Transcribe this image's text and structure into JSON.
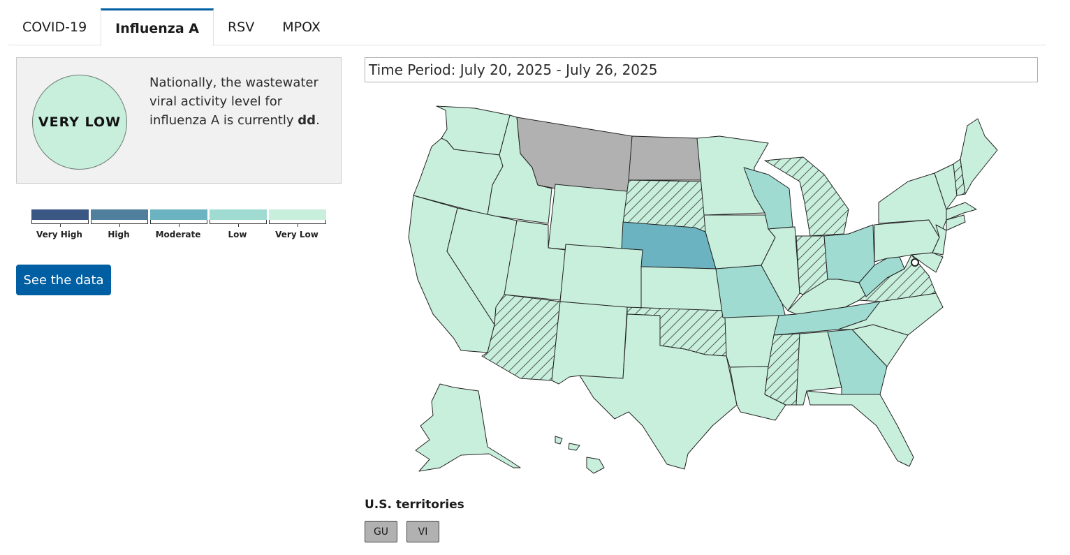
{
  "tabs": [
    {
      "label": "COVID-19",
      "active": false
    },
    {
      "label": "Influenza A",
      "active": true
    },
    {
      "label": "RSV",
      "active": false
    },
    {
      "label": "MPOX",
      "active": false
    }
  ],
  "summary": {
    "level_badge": "VERY LOW",
    "text_before": "Nationally, the wastewater viral activity level for influenza A is currently ",
    "level_value": "dd",
    "text_after": "."
  },
  "legend": [
    {
      "label": "Very High",
      "color": "#3b5783"
    },
    {
      "label": "High",
      "color": "#4f7f9d"
    },
    {
      "label": "Moderate",
      "color": "#6cb3c1"
    },
    {
      "label": "Low",
      "color": "#9fdbd1"
    },
    {
      "label": "Very Low",
      "color": "#c8eedc"
    }
  ],
  "see_data_label": "See the data",
  "time_period": "Time Period: July 20, 2025 - July 26, 2025",
  "map_colors": {
    "very_low": "#c8eedc",
    "low": "#9fdbd1",
    "moderate": "#6cb3c1",
    "no_data": "#b1b1b1",
    "hatch": "#333333"
  },
  "territories": {
    "title": "U.S. territories",
    "items": [
      "GU",
      "VI"
    ]
  }
}
